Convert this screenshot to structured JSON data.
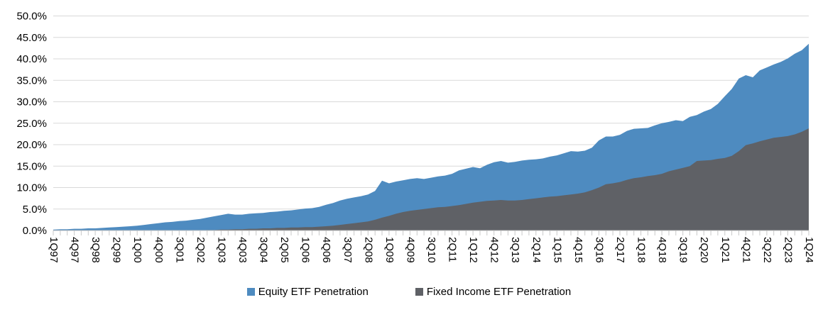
{
  "chart_data": {
    "type": "area",
    "title": "",
    "subtitle": "",
    "grid": "horizontal",
    "legend_position": "bottom-center",
    "y_axis": {
      "min": 0,
      "max": 50,
      "step": 5,
      "format": "percent",
      "tick_labels": [
        "0.0%",
        "5.0%",
        "10.0%",
        "15.0%",
        "20.0%",
        "25.0%",
        "30.0%",
        "35.0%",
        "40.0%",
        "45.0%",
        "50.0%"
      ]
    },
    "x_axis": {
      "label_interval": 3,
      "n_points": 109,
      "tick_labels": [
        "1Q97",
        "4Q97",
        "3Q98",
        "2Q99",
        "1Q00",
        "4Q00",
        "3Q01",
        "2Q02",
        "1Q03",
        "4Q03",
        "3Q04",
        "2Q05",
        "1Q06",
        "4Q06",
        "3Q07",
        "2Q08",
        "1Q09",
        "4Q09",
        "3Q10",
        "2Q11",
        "1Q12",
        "4Q12",
        "3Q13",
        "2Q14",
        "1Q15",
        "4Q15",
        "3Q16",
        "2Q17",
        "1Q18",
        "4Q18",
        "3Q19",
        "2Q20",
        "1Q21",
        "4Q21",
        "3Q22",
        "2Q23",
        "1Q24"
      ]
    },
    "series": [
      {
        "name": "Equity ETF Penetration",
        "color": "#4E8BC0",
        "values": [
          0.2,
          0.3,
          0.3,
          0.4,
          0.4,
          0.5,
          0.5,
          0.6,
          0.7,
          0.8,
          0.9,
          1.0,
          1.1,
          1.3,
          1.5,
          1.7,
          1.9,
          2.0,
          2.2,
          2.3,
          2.5,
          2.7,
          3.0,
          3.3,
          3.6,
          3.9,
          3.7,
          3.7,
          3.9,
          4.0,
          4.1,
          4.3,
          4.4,
          4.6,
          4.7,
          4.9,
          5.1,
          5.2,
          5.5,
          6.0,
          6.4,
          7.0,
          7.4,
          7.7,
          8.0,
          8.4,
          9.2,
          11.6,
          11.0,
          11.4,
          11.7,
          12.0,
          12.2,
          12.0,
          12.3,
          12.6,
          12.8,
          13.2,
          14.0,
          14.4,
          14.8,
          14.5,
          15.3,
          15.9,
          16.2,
          15.8,
          16.0,
          16.3,
          16.5,
          16.6,
          16.8,
          17.2,
          17.5,
          18.0,
          18.5,
          18.4,
          18.6,
          19.3,
          21.0,
          21.9,
          21.9,
          22.3,
          23.2,
          23.7,
          23.8,
          23.9,
          24.5,
          25.0,
          25.3,
          25.7,
          25.5,
          26.5,
          26.9,
          27.7,
          28.3,
          29.5,
          31.3,
          33.0,
          35.4,
          36.2,
          35.7,
          37.3,
          38.0,
          38.7,
          39.3,
          40.1,
          41.2,
          42.0,
          43.5
        ]
      },
      {
        "name": "Fixed Income ETF Penetration",
        "color": "#5F6166",
        "values": [
          0,
          0,
          0,
          0,
          0,
          0,
          0,
          0,
          0,
          0,
          0,
          0,
          0,
          0,
          0,
          0,
          0,
          0,
          0,
          0,
          0,
          0,
          0.1,
          0.1,
          0.2,
          0.2,
          0.3,
          0.3,
          0.4,
          0.4,
          0.5,
          0.5,
          0.6,
          0.6,
          0.7,
          0.7,
          0.8,
          0.8,
          0.9,
          1.0,
          1.1,
          1.3,
          1.5,
          1.7,
          1.9,
          2.1,
          2.5,
          3.0,
          3.4,
          3.9,
          4.3,
          4.6,
          4.8,
          5.0,
          5.2,
          5.4,
          5.5,
          5.7,
          5.9,
          6.2,
          6.5,
          6.7,
          6.9,
          7.0,
          7.1,
          7.0,
          7.0,
          7.1,
          7.3,
          7.5,
          7.7,
          7.9,
          8.0,
          8.2,
          8.4,
          8.6,
          8.9,
          9.4,
          10.0,
          10.8,
          11.0,
          11.3,
          11.8,
          12.2,
          12.4,
          12.7,
          12.9,
          13.2,
          13.8,
          14.2,
          14.6,
          15.0,
          16.2,
          16.3,
          16.4,
          16.7,
          16.9,
          17.4,
          18.5,
          19.9,
          20.3,
          20.8,
          21.2,
          21.6,
          21.8,
          22.0,
          22.4,
          23.0,
          23.8
        ]
      }
    ],
    "colors": {
      "gridline": "#D9D9D9",
      "axis": "#BFBFBF",
      "tick": "#C9C9C9",
      "text": "#000000",
      "background": "#FFFFFF"
    }
  }
}
